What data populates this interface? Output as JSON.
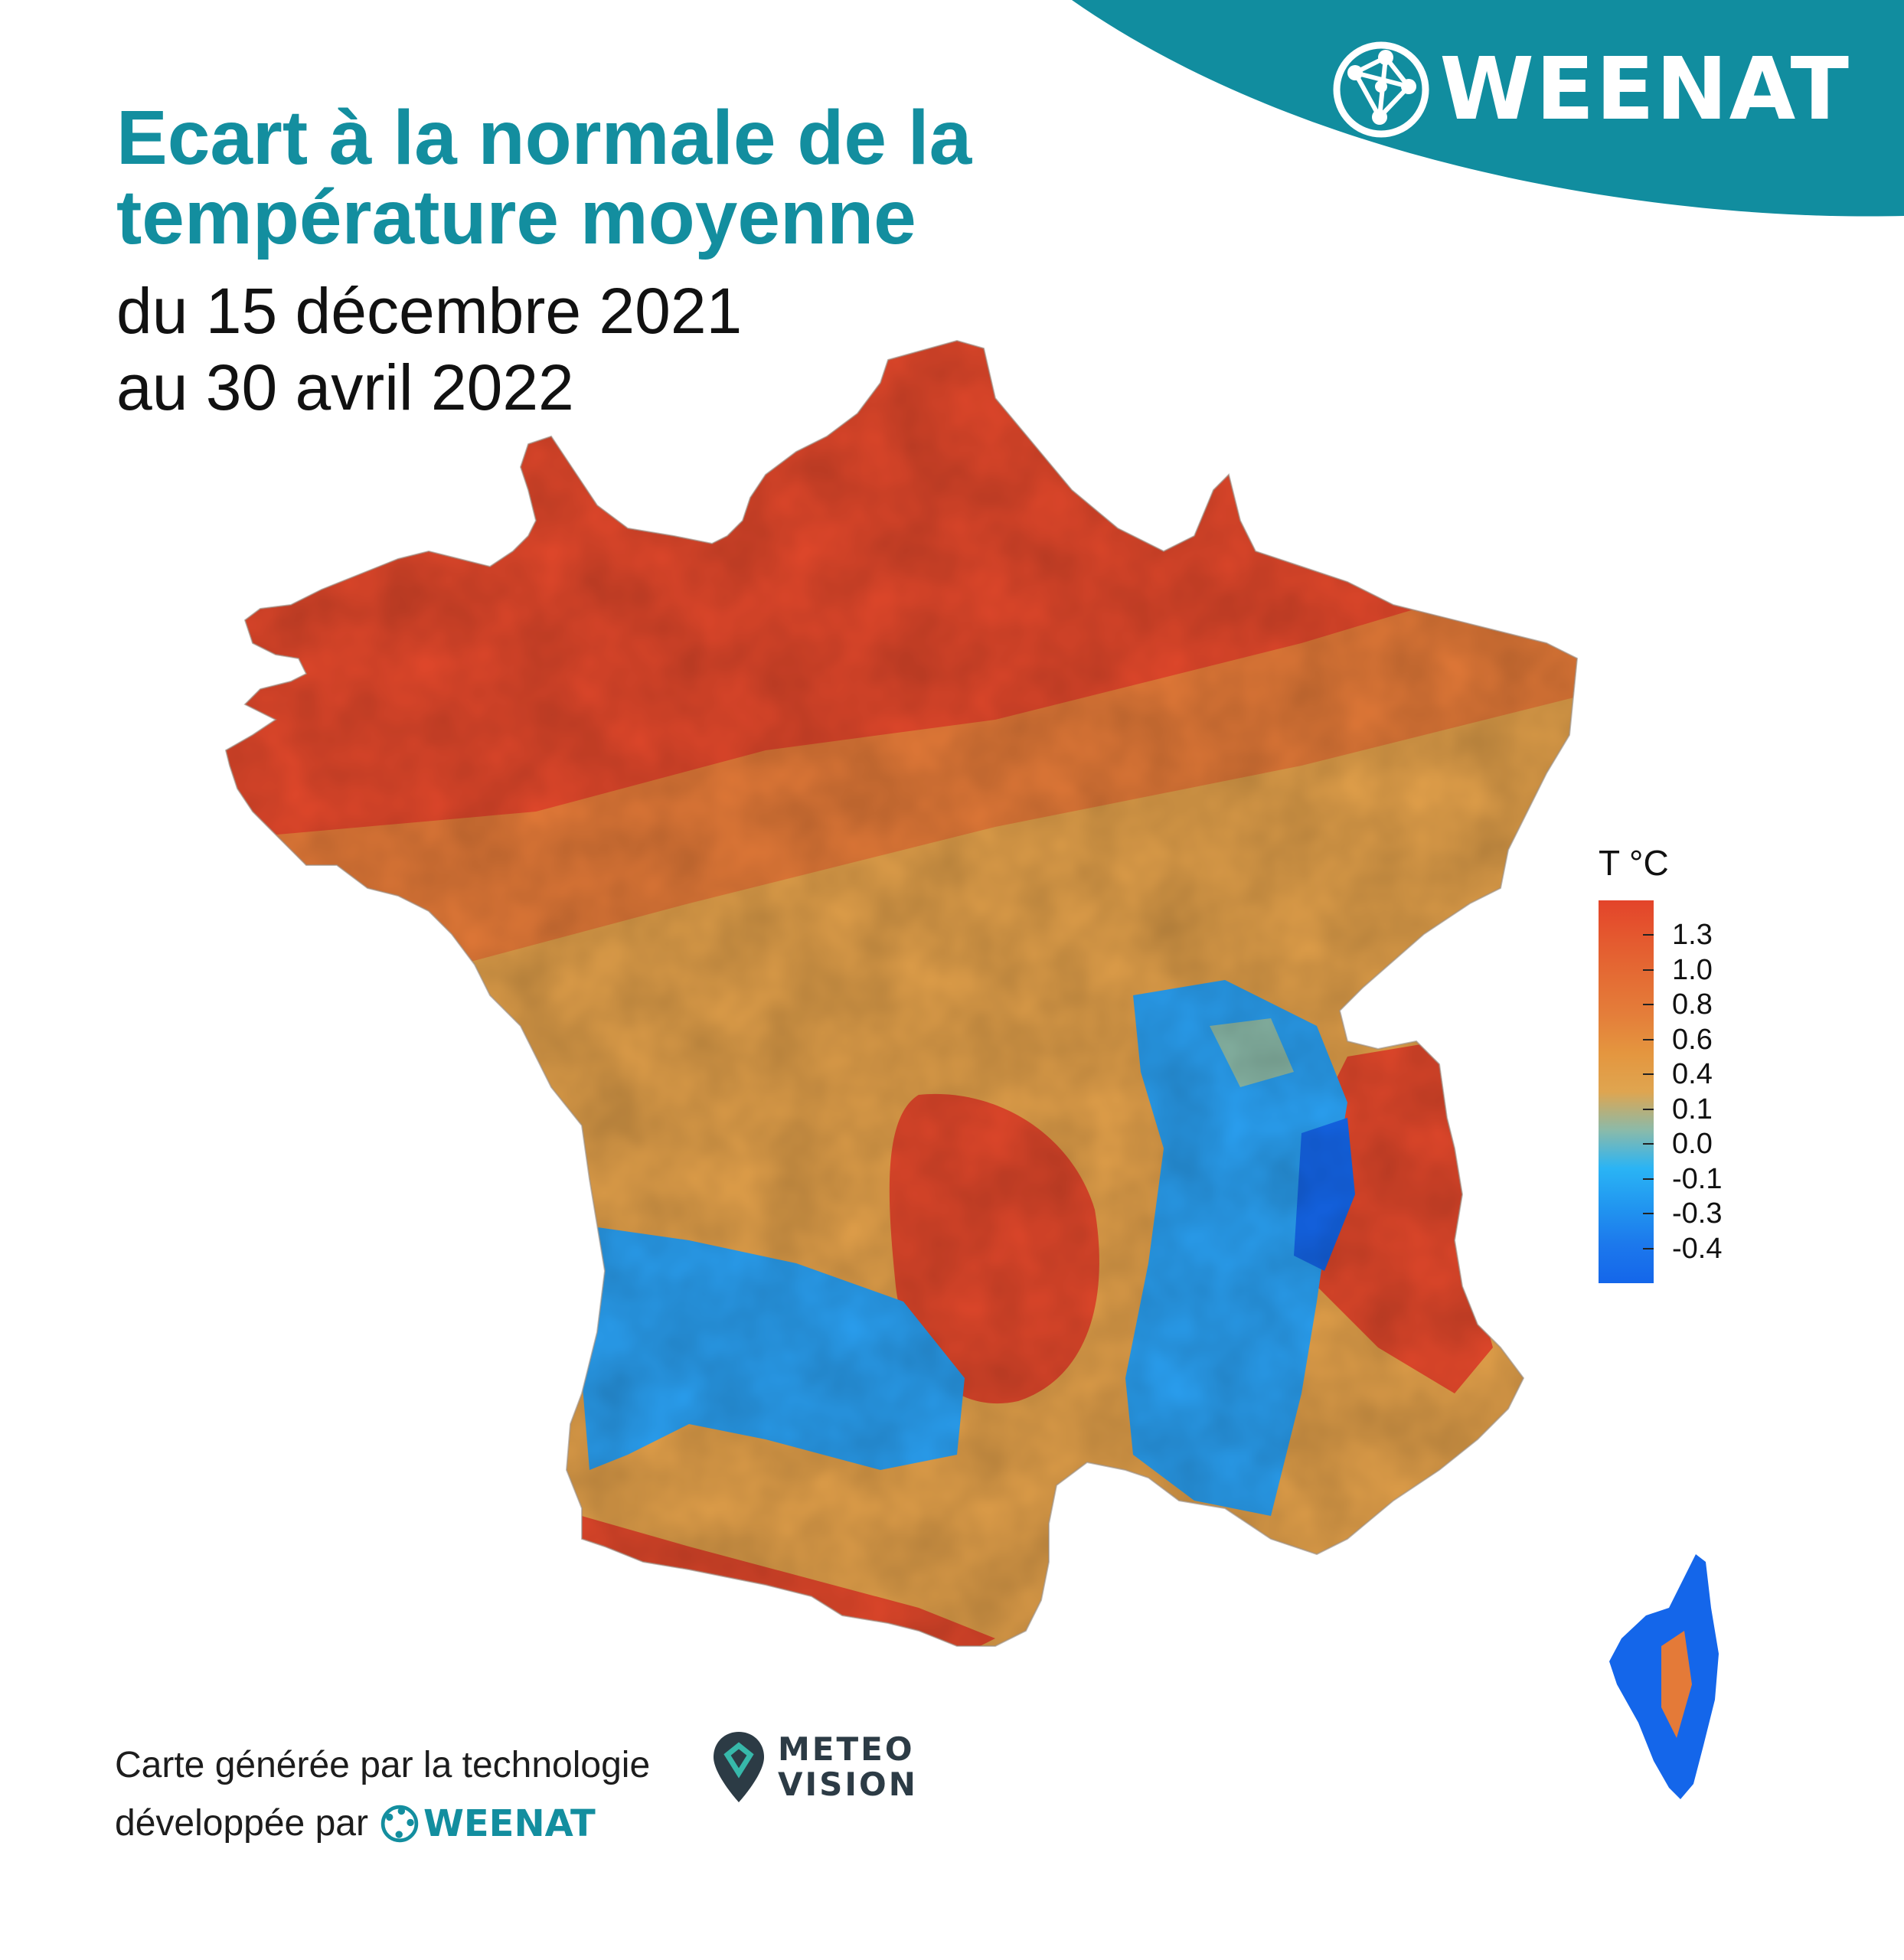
{
  "brand": {
    "name": "WEENAT",
    "color": "#118d9f",
    "icon": "network-globe-icon"
  },
  "title": "Ecart à la normale de la température moyenne",
  "subtitle": {
    "line1": "du 15 décembre 2021",
    "line2": "au 30 avril 2022"
  },
  "legend": {
    "title": "T °C",
    "labels": [
      "1.3",
      "1.0",
      "0.8",
      "0.6",
      "0.4",
      "0.1",
      "0.0",
      "-0.1",
      "-0.3",
      "-0.4"
    ],
    "colors": [
      "#e3442a",
      "#e4592f",
      "#e46c34",
      "#e47e3a",
      "#e4963f",
      "#dfa550",
      "#8bbaa9",
      "#2ab4f5",
      "#2196f0",
      "#1c78ec",
      "#1466ea"
    ]
  },
  "credits": {
    "line1": "Carte générée par la technologie",
    "line2": "développée par",
    "partner_brand": "WEENAT",
    "product_logo": {
      "line1": "METEO",
      "line2": "VISION",
      "icon": "map-pin-logo-icon"
    }
  },
  "map": {
    "region_mainland": "France métropolitaine",
    "region_island": "Corse",
    "scale_colors": {
      "warm_high": "#e3482b",
      "warm_mid": "#e47a38",
      "warm_low": "#e2a04a",
      "neutral": "#8bbaa9",
      "cool": "#2aa0f2",
      "cold": "#1466ea"
    }
  }
}
